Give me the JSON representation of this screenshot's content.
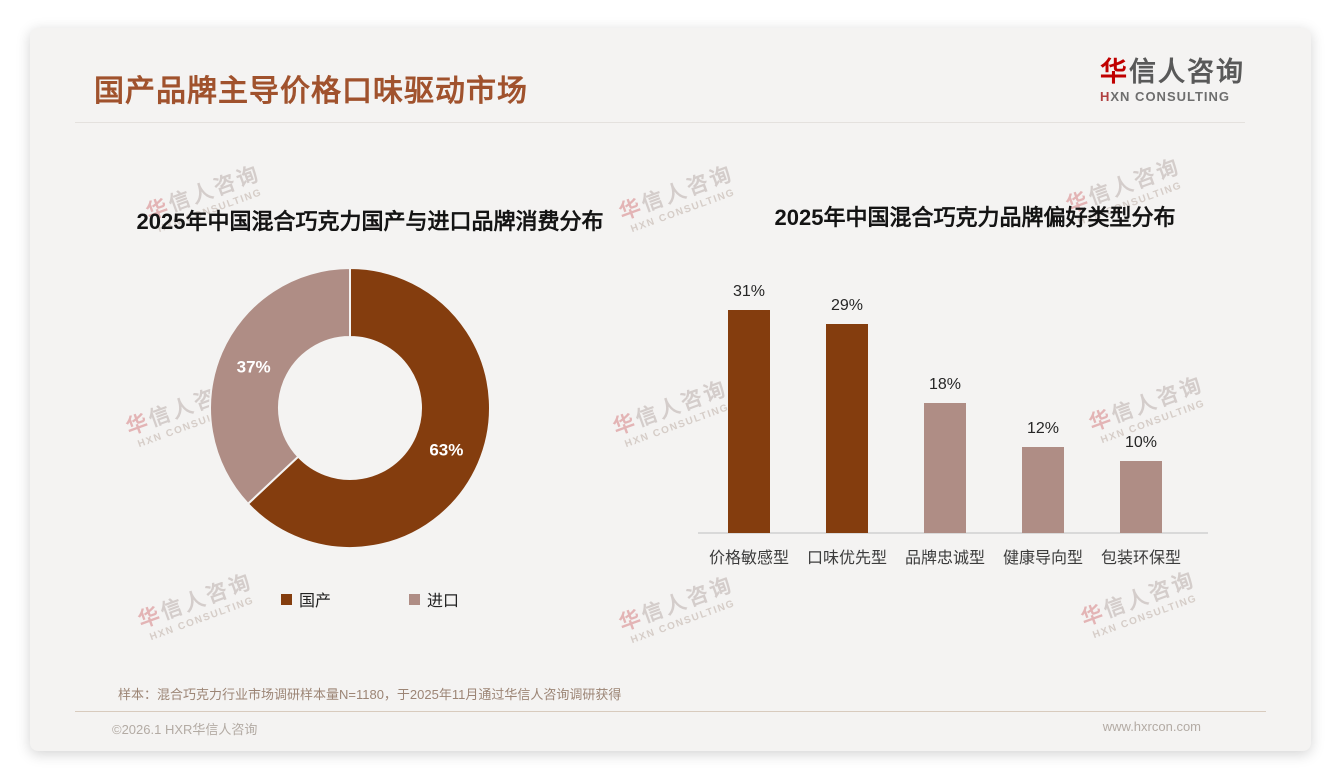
{
  "slide": {
    "title": "国产品牌主导价格口味驱动市场",
    "logo": {
      "zh_first": "华",
      "zh_rest": "信人咨询",
      "en_first": "H",
      "en_rest": "XN CONSULTING"
    },
    "footnote": "样本：混合巧克力行业市场调研样本量N=1180，于2025年11月通过华信人咨询调研获得",
    "footer": {
      "copyright": "©2026.1 HXR华信人咨询",
      "website": "www.hxrcon.com"
    },
    "watermark": {
      "line1_first": "华",
      "line1_rest": "信人咨询",
      "line2": "HXN CONSULTING"
    }
  },
  "colors": {
    "title_brown": "#A0522D",
    "brand_red": "#C00000",
    "dark_brown": "#843D0E",
    "mauve": "#AF8D85",
    "card_bg": "#F4F3F2",
    "axis_gray": "#D9D9D9"
  },
  "chart_data": [
    {
      "type": "pie",
      "donut": true,
      "title": "2025年中国混合巧克力国产与进口品牌消费分布",
      "labels": [
        "国产",
        "进口"
      ],
      "values": [
        63,
        37
      ],
      "data_labels": [
        "63%",
        "37%"
      ],
      "colors": [
        "#843D0E",
        "#AF8D85"
      ],
      "legend_position": "bottom",
      "start_angle_deg": 0,
      "direction": "clockwise"
    },
    {
      "type": "bar",
      "title": "2025年中国混合巧克力品牌偏好类型分布",
      "categories": [
        "价格敏感型",
        "口味优先型",
        "品牌忠诚型",
        "健康导向型",
        "包装环保型"
      ],
      "values": [
        31,
        29,
        18,
        12,
        10
      ],
      "data_labels": [
        "31%",
        "29%",
        "18%",
        "12%",
        "10%"
      ],
      "bar_colors": [
        "#843D0E",
        "#843D0E",
        "#AF8D85",
        "#AF8D85",
        "#AF8D85"
      ],
      "ylim": [
        0,
        33
      ],
      "grid": false,
      "legend": false
    }
  ]
}
